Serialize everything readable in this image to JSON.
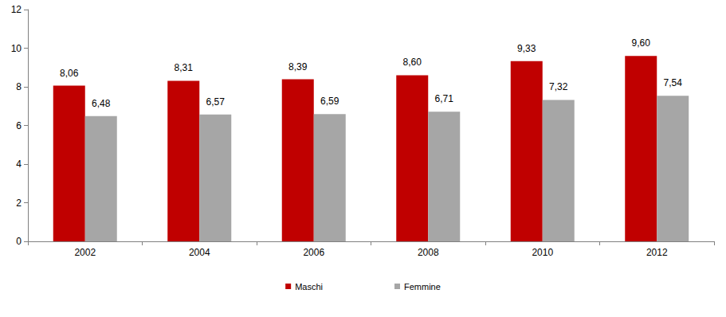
{
  "chart_data": {
    "type": "bar",
    "categories": [
      "2002",
      "2004",
      "2006",
      "2008",
      "2010",
      "2012"
    ],
    "series": [
      {
        "name": "Maschi",
        "color": "#c00000",
        "values": [
          8.06,
          8.31,
          8.39,
          8.6,
          9.33,
          9.6
        ],
        "value_labels": [
          "8,06",
          "8,31",
          "8,39",
          "8,60",
          "9,33",
          "9,60"
        ]
      },
      {
        "name": "Femmine",
        "color": "#a6a6a6",
        "values": [
          6.48,
          6.57,
          6.59,
          6.71,
          7.32,
          7.54
        ],
        "value_labels": [
          "6,48",
          "6,57",
          "6,59",
          "6,71",
          "7,32",
          "7,54"
        ]
      }
    ],
    "ylim": [
      0,
      12
    ],
    "yticks": [
      0,
      2,
      4,
      6,
      8,
      10,
      12
    ],
    "grid": false,
    "legend": "bottom",
    "data_labels": true
  }
}
